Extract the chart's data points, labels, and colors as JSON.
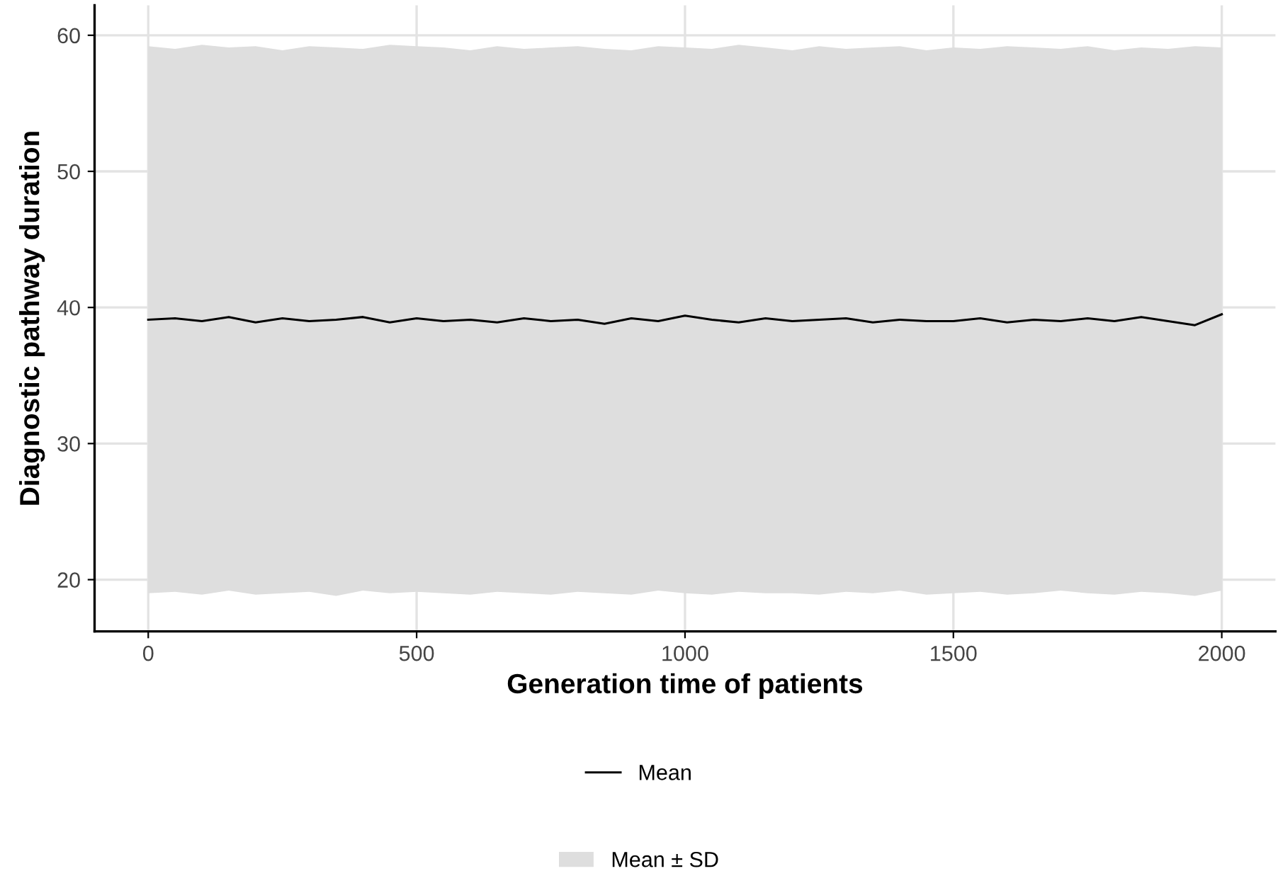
{
  "chart_data": {
    "type": "line",
    "xlabel": "Generation time of patients",
    "ylabel": "Diagnostic pathway duration",
    "x": [
      0,
      50,
      100,
      150,
      200,
      250,
      300,
      350,
      400,
      450,
      500,
      550,
      600,
      650,
      700,
      750,
      800,
      850,
      900,
      950,
      1000,
      1050,
      1100,
      1150,
      1200,
      1250,
      1300,
      1350,
      1400,
      1450,
      1500,
      1550,
      1600,
      1650,
      1700,
      1750,
      1800,
      1850,
      1900,
      1950,
      2000
    ],
    "series": [
      {
        "name": "Mean",
        "color": "#000000",
        "values": [
          39.1,
          39.2,
          39.0,
          39.3,
          38.9,
          39.2,
          39.0,
          39.1,
          39.3,
          38.9,
          39.2,
          39.0,
          39.1,
          38.9,
          39.2,
          39.0,
          39.1,
          38.8,
          39.2,
          39.0,
          39.4,
          39.1,
          38.9,
          39.2,
          39.0,
          39.1,
          39.2,
          38.9,
          39.1,
          39.0,
          39.0,
          39.2,
          38.9,
          39.1,
          39.0,
          39.2,
          39.0,
          39.3,
          39.0,
          38.7,
          39.5
        ],
        "lower": [
          19.0,
          19.1,
          18.9,
          19.2,
          18.9,
          19.0,
          19.1,
          18.8,
          19.2,
          19.0,
          19.1,
          19.0,
          18.9,
          19.1,
          19.0,
          18.9,
          19.1,
          19.0,
          18.9,
          19.2,
          19.0,
          18.9,
          19.1,
          19.0,
          19.0,
          18.9,
          19.1,
          19.0,
          19.2,
          18.9,
          19.0,
          19.1,
          18.9,
          19.0,
          19.2,
          19.0,
          18.9,
          19.1,
          19.0,
          18.8,
          19.2
        ],
        "upper": [
          59.2,
          59.0,
          59.3,
          59.1,
          59.2,
          58.9,
          59.2,
          59.1,
          59.0,
          59.3,
          59.2,
          59.1,
          58.9,
          59.2,
          59.0,
          59.1,
          59.2,
          59.0,
          58.9,
          59.2,
          59.1,
          59.0,
          59.3,
          59.1,
          58.9,
          59.2,
          59.0,
          59.1,
          59.2,
          58.9,
          59.1,
          59.0,
          59.2,
          59.1,
          59.0,
          59.2,
          58.9,
          59.1,
          59.0,
          59.2,
          59.1
        ]
      }
    ],
    "annotations": [
      "Mean ± SD"
    ],
    "xlim": [
      -100,
      2100
    ],
    "ylim": [
      16.2,
      62.2
    ],
    "xticks": [
      0,
      500,
      1000,
      1500,
      2000
    ],
    "yticks": [
      20,
      30,
      40,
      50,
      60
    ],
    "grid": true,
    "legend": "bottom",
    "marker": "none",
    "line_style": "solid"
  }
}
